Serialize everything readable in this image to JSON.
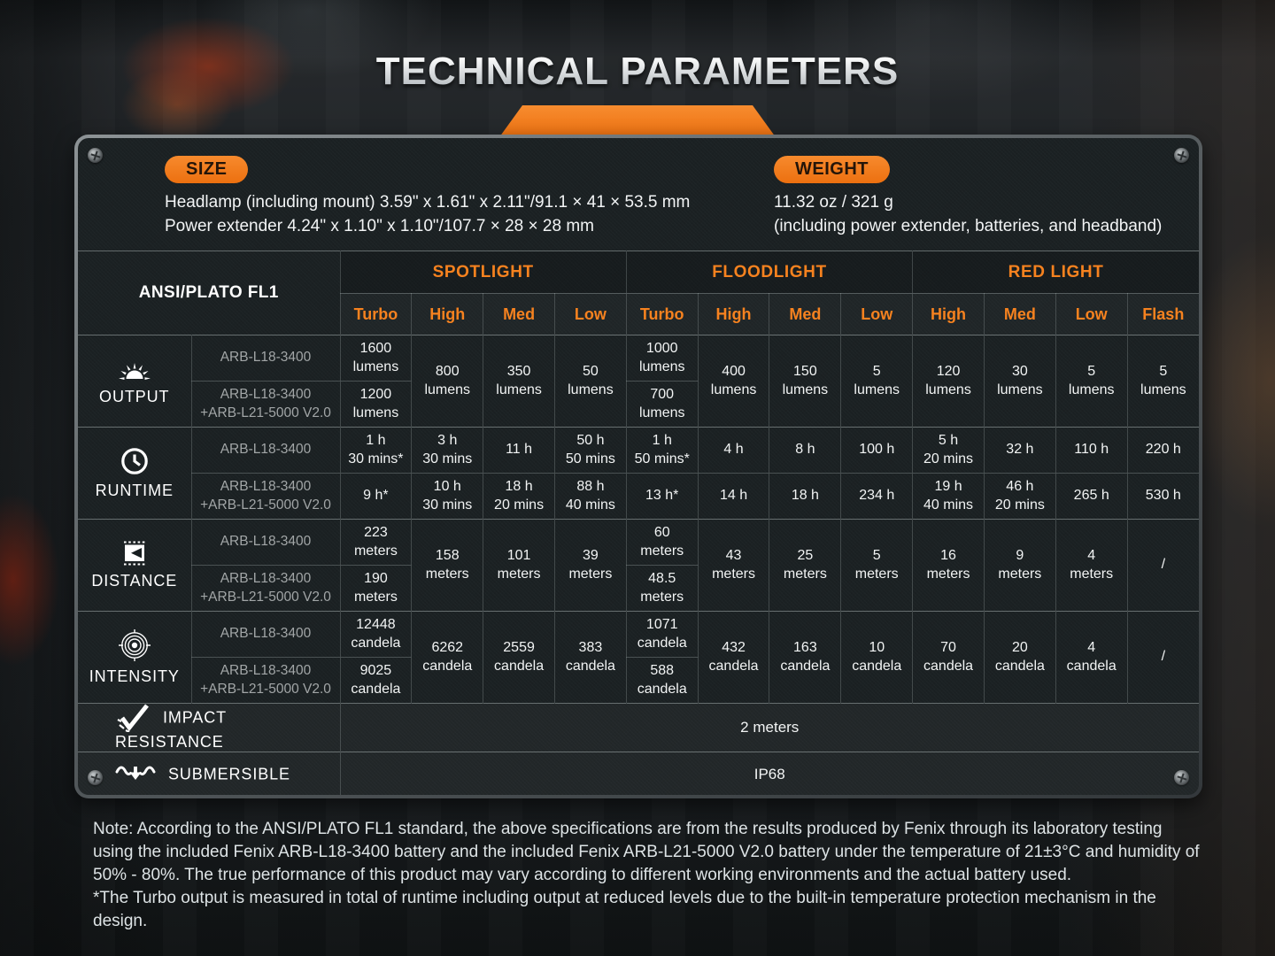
{
  "page": {
    "title": "TECHNICAL PARAMETERS",
    "accent_color": "#f0791c"
  },
  "size_section": {
    "badge": "SIZE",
    "line1": "Headlamp (including mount)  3.59\" x 1.61\" x 2.11\"/91.1 × 41 × 53.5 mm",
    "line2": "Power extender  4.24\" x 1.10\" x 1.10\"/107.7 × 28 × 28 mm"
  },
  "weight_section": {
    "badge": "WEIGHT",
    "line1": "11.32 oz / 321 g",
    "line2": "(including power extender, batteries, and headband)"
  },
  "table": {
    "corner_label": "ANSI/PLATO FL1",
    "groups": [
      {
        "label": "SPOTLIGHT",
        "modes": [
          "Turbo",
          "High",
          "Med",
          "Low"
        ]
      },
      {
        "label": "FLOODLIGHT",
        "modes": [
          "Turbo",
          "High",
          "Med",
          "Low"
        ]
      },
      {
        "label": "RED LIGHT",
        "modes": [
          "High",
          "Med",
          "Low",
          "Flash"
        ]
      }
    ],
    "batteries": [
      "ARB-L18-3400",
      "ARB-L18-3400\n+ARB-L21-5000 V2.0"
    ],
    "rows": [
      {
        "label": "OUTPUT",
        "icon": "output-icon",
        "cells": [
          {
            "s": [
              "1600\nlumens",
              "1200\nlumens"
            ]
          },
          {
            "m": "800\nlumens"
          },
          {
            "m": "350\nlumens"
          },
          {
            "m": "50\nlumens"
          },
          {
            "s": [
              "1000\nlumens",
              "700\nlumens"
            ]
          },
          {
            "m": "400\nlumens"
          },
          {
            "m": "150\nlumens"
          },
          {
            "m": "5\nlumens"
          },
          {
            "m": "120\nlumens"
          },
          {
            "m": "30\nlumens"
          },
          {
            "m": "5\nlumens"
          },
          {
            "m": "5\nlumens"
          }
        ]
      },
      {
        "label": "RUNTIME",
        "icon": "runtime-icon",
        "cells": [
          {
            "s": [
              "1 h\n30 mins*",
              "9 h*"
            ]
          },
          {
            "s": [
              "3 h\n30 mins",
              "10 h\n30 mins"
            ]
          },
          {
            "s": [
              "11 h",
              "18 h\n20 mins"
            ]
          },
          {
            "s": [
              "50 h\n50 mins",
              "88 h\n40 mins"
            ]
          },
          {
            "s": [
              "1 h\n50 mins*",
              "13 h*"
            ]
          },
          {
            "s": [
              "4 h",
              "14 h"
            ]
          },
          {
            "s": [
              "8 h",
              "18 h"
            ]
          },
          {
            "s": [
              "100 h",
              "234 h"
            ]
          },
          {
            "s": [
              "5 h\n20 mins",
              "19 h\n40 mins"
            ]
          },
          {
            "s": [
              "32 h",
              "46 h\n20 mins"
            ]
          },
          {
            "s": [
              "110 h",
              "265 h"
            ]
          },
          {
            "s": [
              "220 h",
              "530 h"
            ]
          }
        ]
      },
      {
        "label": "DISTANCE",
        "icon": "distance-icon",
        "cells": [
          {
            "s": [
              "223\nmeters",
              "190\nmeters"
            ]
          },
          {
            "m": "158\nmeters"
          },
          {
            "m": "101\nmeters"
          },
          {
            "m": "39\nmeters"
          },
          {
            "s": [
              "60\nmeters",
              "48.5\nmeters"
            ]
          },
          {
            "m": "43\nmeters"
          },
          {
            "m": "25\nmeters"
          },
          {
            "m": "5\nmeters"
          },
          {
            "m": "16\nmeters"
          },
          {
            "m": "9\nmeters"
          },
          {
            "m": "4\nmeters"
          },
          {
            "m": "/"
          }
        ]
      },
      {
        "label": "INTENSITY",
        "icon": "intensity-icon",
        "cells": [
          {
            "s": [
              "12448\ncandela",
              "9025\ncandela"
            ]
          },
          {
            "m": "6262\ncandela"
          },
          {
            "m": "2559\ncandela"
          },
          {
            "m": "383\ncandela"
          },
          {
            "s": [
              "1071\ncandela",
              "588\ncandela"
            ]
          },
          {
            "m": "432\ncandela"
          },
          {
            "m": "163\ncandela"
          },
          {
            "m": "10\ncandela"
          },
          {
            "m": "70\ncandela"
          },
          {
            "m": "20\ncandela"
          },
          {
            "m": "4\ncandela"
          },
          {
            "m": "/"
          }
        ]
      }
    ],
    "full_rows": [
      {
        "label": "IMPACT RESISTANCE",
        "icon": "impact-icon",
        "value": "2 meters"
      },
      {
        "label": "SUBMERSIBLE",
        "icon": "submersible-icon",
        "value": "IP68"
      }
    ]
  },
  "notes": {
    "main": "Note: According to the ANSI/PLATO FL1 standard, the above specifications are from the results produced by Fenix through its laboratory testing using the included Fenix ARB-L18-3400 battery and the included Fenix ARB-L21-5000 V2.0 battery under the temperature of 21±3°C and humidity of 50% - 80%. The true performance of this product may vary according to different working environments and the actual battery used.",
    "asterisk": "*The Turbo output is measured in total of runtime including output at reduced levels due to the built-in temperature protection mechanism in the design."
  }
}
